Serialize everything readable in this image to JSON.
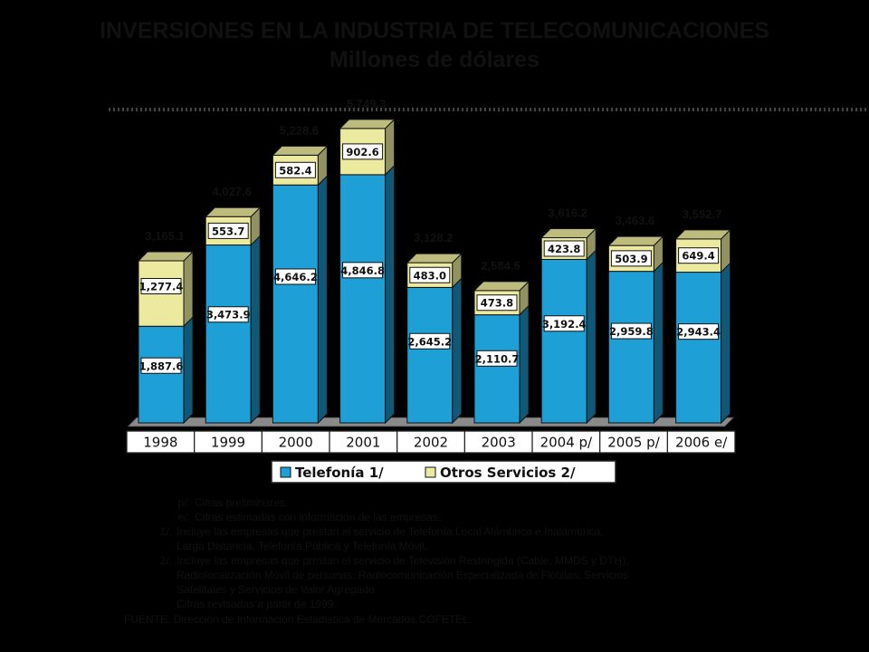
{
  "title": "INVERSIONES EN LA INDUSTRIA DE TELECOMUNICACIONES",
  "subtitle": "Millones de dólares",
  "colors": {
    "telefonia": "#1e9fd6",
    "otros": "#ecea9e",
    "frame": "#000000"
  },
  "chart_data": {
    "type": "bar",
    "stacked": true,
    "categories": [
      "1998",
      "1999",
      "2000",
      "2001",
      "2002",
      "2003",
      "2004 p/",
      "2005 p/",
      "2006 e/"
    ],
    "series": [
      {
        "name": "Telefonía 1/",
        "values": [
          1887.6,
          3473.9,
          4646.2,
          4846.8,
          2645.2,
          2110.7,
          3192.4,
          2959.8,
          2943.4
        ],
        "labels": [
          "1,887.6",
          "3,473.9",
          "4,646.2",
          "4,846.8",
          "2,645.2",
          "2,110.7",
          "3,192.4",
          "2,959.8",
          "2,943.4"
        ]
      },
      {
        "name": "Otros Servicios 2/",
        "values": [
          1277.4,
          553.7,
          582.4,
          902.6,
          483.0,
          473.8,
          423.8,
          503.9,
          649.4
        ],
        "labels": [
          "1,277.4",
          "553.7",
          "582.4",
          "902.6",
          "483.0",
          "473.8",
          "423.8",
          "503.9",
          "649.4"
        ]
      }
    ],
    "totals": [
      "3,165.1",
      "4,027.6",
      "5,228.6",
      "5,749.3",
      "3,128.2",
      "2,584.5",
      "3,616.2",
      "3,463.6",
      "3,592.7"
    ],
    "ylim": [
      0,
      6500
    ],
    "legend_position": "bottom"
  },
  "notes": {
    "p_key": "p/:",
    "p_text": "Cifras preliminares.",
    "e_key": "e/:",
    "e_text": "Cifras estimadas con información de las empresas.",
    "n1_key": "1/:",
    "n1_line1": "Incluye las empresas que prestan el servicio de Telefonía Local Alámbrica e Inalámbrica,",
    "n1_line2": "Larga Distancia,  Telefonía Pública y Telefonía Móvil.",
    "n2_key": "2/:",
    "n2_line1": "Incluye las empresas que prestan el servicio de Televisión Restringida (Cable, MMDS y DTH),",
    "n2_line2": "Radiolocalización Móvil de personas, Radiocomunicación Especializada de Flotillas, Servicios",
    "n2_line3": "Satelitales  y Servicios de Valor Agregado.",
    "n2_line4": "Cifras revisadas a partir de 1999.",
    "source_prefix": "FUENTE:  Dirección de Información Estadística de Mercados,",
    "source_org": "COFETEL",
    "source_suffix": "."
  }
}
